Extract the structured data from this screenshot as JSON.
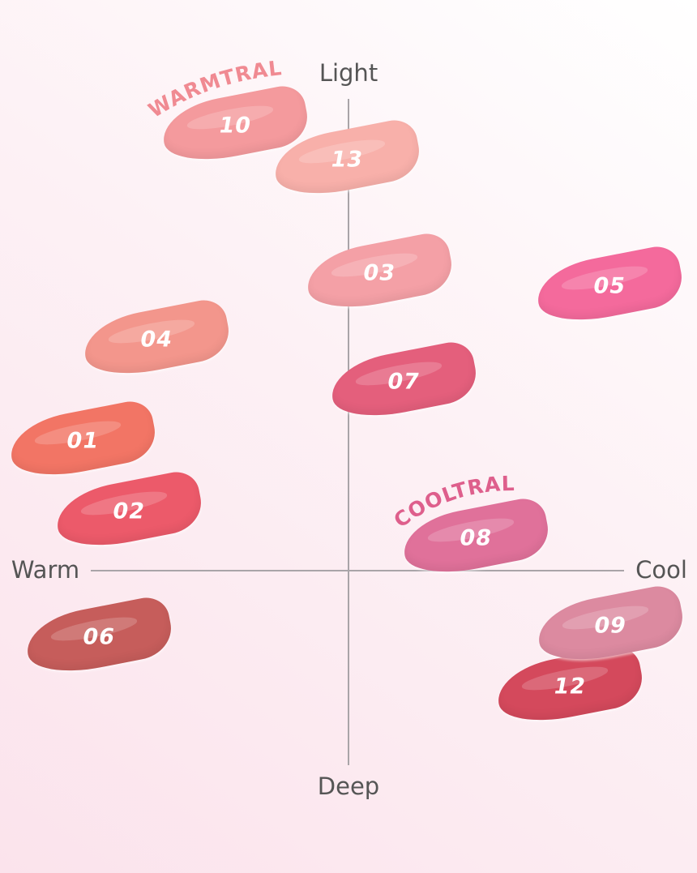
{
  "axes": {
    "top": "Light",
    "bottom": "Deep",
    "left": "Warm",
    "right": "Cool"
  },
  "groups": {
    "warm_neutral": {
      "label": "WARMTRAL",
      "color": "#f08a92"
    },
    "cool_neutral": {
      "label": "COOLTRAL",
      "color": "#de5f8c"
    }
  },
  "swatches": [
    {
      "code": "10",
      "color": "#f49a9d"
    },
    {
      "code": "13",
      "color": "#f8b0aa"
    },
    {
      "code": "03",
      "color": "#f4a0a6"
    },
    {
      "code": "05",
      "color": "#f46a9c"
    },
    {
      "code": "04",
      "color": "#f3968c"
    },
    {
      "code": "07",
      "color": "#e45f7c"
    },
    {
      "code": "01",
      "color": "#f27565"
    },
    {
      "code": "02",
      "color": "#ec5a6a"
    },
    {
      "code": "08",
      "color": "#e0719a"
    },
    {
      "code": "06",
      "color": "#c65d5b"
    },
    {
      "code": "12",
      "color": "#d4495c"
    },
    {
      "code": "09",
      "color": "#dc8aa0"
    }
  ]
}
